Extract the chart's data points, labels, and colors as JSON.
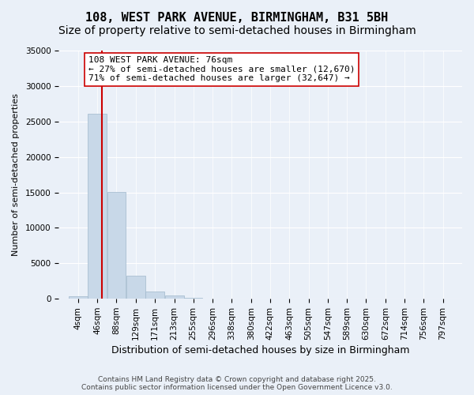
{
  "title1": "108, WEST PARK AVENUE, BIRMINGHAM, B31 5BH",
  "title2": "Size of property relative to semi-detached houses in Birmingham",
  "xlabel": "Distribution of semi-detached houses by size in Birmingham",
  "ylabel": "Number of semi-detached properties",
  "bin_labels": [
    "4sqm",
    "46sqm",
    "88sqm",
    "129sqm",
    "171sqm",
    "213sqm",
    "255sqm",
    "296sqm",
    "338sqm",
    "380sqm",
    "422sqm",
    "463sqm",
    "505sqm",
    "547sqm",
    "589sqm",
    "630sqm",
    "672sqm",
    "714sqm",
    "756sqm",
    "797sqm"
  ],
  "bin_edges": [
    4,
    46,
    88,
    129,
    171,
    213,
    255,
    296,
    338,
    380,
    422,
    463,
    505,
    547,
    589,
    630,
    672,
    714,
    756,
    797,
    839
  ],
  "values": [
    350,
    26100,
    15100,
    3300,
    1000,
    450,
    150,
    0,
    0,
    0,
    0,
    0,
    0,
    0,
    0,
    0,
    0,
    0,
    0,
    0
  ],
  "bar_color": "#c8d8e8",
  "bar_edge_color": "#a0b8cc",
  "property_size": 76,
  "property_line_color": "#cc0000",
  "annotation_line1": "108 WEST PARK AVENUE: 76sqm",
  "annotation_line2": "← 27% of semi-detached houses are smaller (12,670)",
  "annotation_line3": "71% of semi-detached houses are larger (32,647) →",
  "annotation_box_color": "#ffffff",
  "annotation_box_edge_color": "#cc0000",
  "ylim": [
    0,
    35000
  ],
  "yticks": [
    0,
    5000,
    10000,
    15000,
    20000,
    25000,
    30000,
    35000
  ],
  "background_color": "#eaf0f8",
  "grid_color": "#ffffff",
  "footer_line1": "Contains HM Land Registry data © Crown copyright and database right 2025.",
  "footer_line2": "Contains public sector information licensed under the Open Government Licence v3.0.",
  "title1_fontsize": 11,
  "title2_fontsize": 10,
  "xlabel_fontsize": 9,
  "ylabel_fontsize": 8,
  "tick_fontsize": 7.5,
  "annotation_fontsize": 8,
  "footer_fontsize": 6.5
}
